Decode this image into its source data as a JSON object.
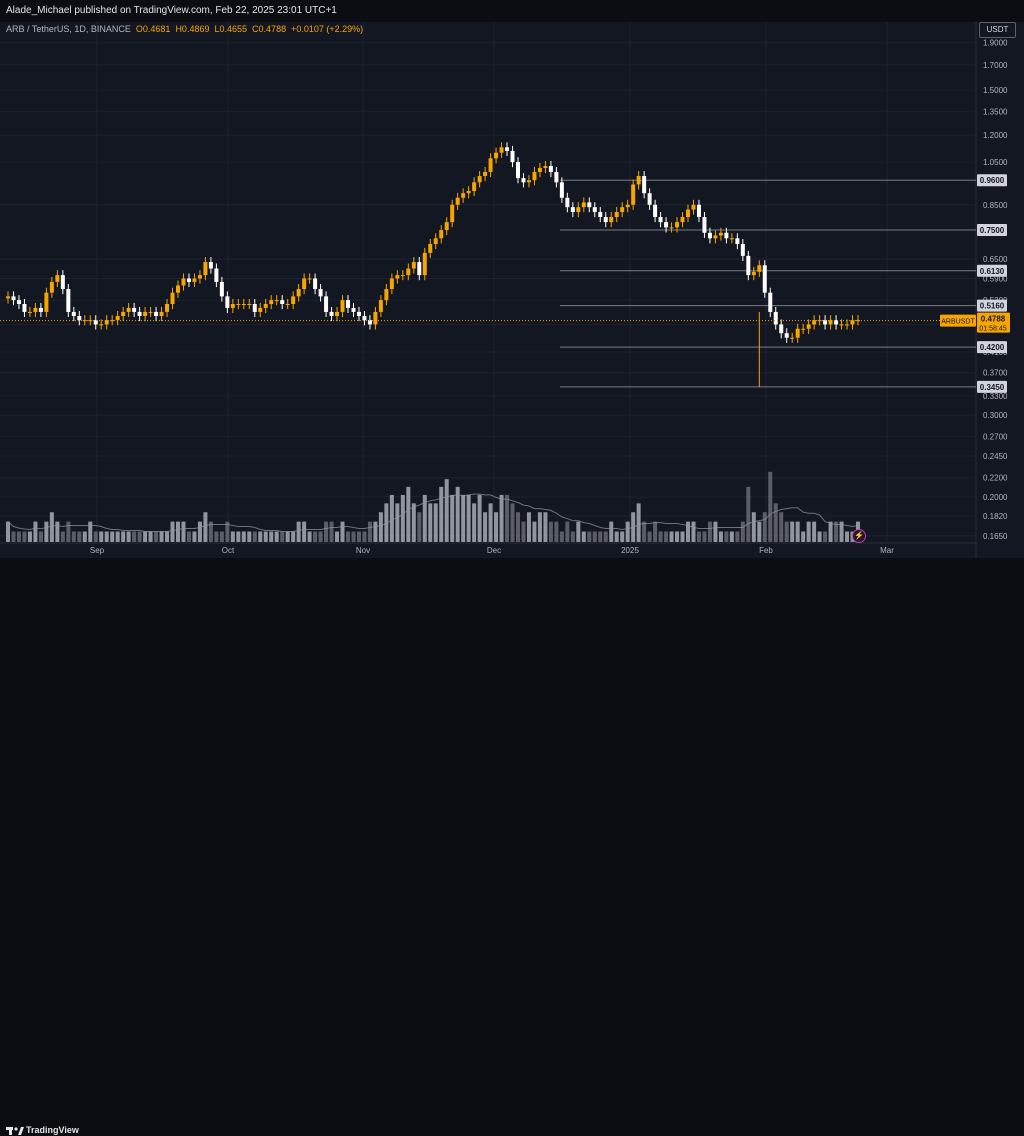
{
  "header": {
    "publisher": "Alade_Michael published on TradingView.com, Feb 22, 2025 23:01 UTC+1"
  },
  "legend": {
    "symbol": "ARB / TetherUS, 1D, BINANCE",
    "open": "O0.4681",
    "high": "H0.4869",
    "low": "L0.4655",
    "close": "C0.4788",
    "change": "+0.0107 (+2.29%)"
  },
  "currency": "USDT",
  "footer": {
    "brand": "TradingView"
  },
  "colors": {
    "up": "#f7a600",
    "down": "#ffffff",
    "background": "#131722",
    "grid": "#1e2230",
    "hline": "#787b86",
    "volume_up": "#b2b5be",
    "volume_down": "#6d6f78",
    "volume_ma": "#9598a1"
  },
  "chart_data": {
    "type": "candlestick",
    "symbol": "ARBUSDT",
    "interval": "1D",
    "y_scale": "log",
    "ylim": [
      0.16,
      2.0
    ],
    "y_ticks": [
      "1.9000",
      "1.7000",
      "1.5000",
      "1.3500",
      "1.2000",
      "1.0500",
      "0.8500",
      "0.6500",
      "0.5900",
      "0.5300",
      "0.4700",
      "0.4100",
      "0.3700",
      "0.3300",
      "0.3000",
      "0.2700",
      "0.2450",
      "0.2200",
      "0.2000",
      "0.1820",
      "0.1650"
    ],
    "x_ticks": [
      "Sep",
      "Oct",
      "Nov",
      "Dec",
      "2025",
      "Feb",
      "Mar"
    ],
    "levels": [
      {
        "value": 0.96,
        "label": "0.9600"
      },
      {
        "value": 0.75,
        "label": "0.7500"
      },
      {
        "value": 0.613,
        "label": "0.6130"
      },
      {
        "value": 0.516,
        "label": "0.5160"
      },
      {
        "value": 0.42,
        "label": "0.4200"
      },
      {
        "value": 0.345,
        "label": "0.3450"
      }
    ],
    "last_price": {
      "symbol": "ARBUSDT",
      "value": "0.4788",
      "countdown": "01:58:45"
    },
    "close_series": [
      0.54,
      0.53,
      0.52,
      0.5,
      0.5,
      0.51,
      0.5,
      0.55,
      0.58,
      0.6,
      0.56,
      0.5,
      0.49,
      0.48,
      0.48,
      0.48,
      0.47,
      0.47,
      0.48,
      0.48,
      0.49,
      0.5,
      0.51,
      0.5,
      0.49,
      0.5,
      0.5,
      0.49,
      0.5,
      0.52,
      0.55,
      0.57,
      0.59,
      0.58,
      0.59,
      0.6,
      0.64,
      0.62,
      0.58,
      0.54,
      0.51,
      0.52,
      0.52,
      0.52,
      0.52,
      0.5,
      0.51,
      0.52,
      0.53,
      0.53,
      0.52,
      0.52,
      0.54,
      0.56,
      0.59,
      0.59,
      0.56,
      0.54,
      0.5,
      0.49,
      0.5,
      0.53,
      0.51,
      0.5,
      0.49,
      0.48,
      0.47,
      0.5,
      0.53,
      0.56,
      0.59,
      0.6,
      0.6,
      0.62,
      0.64,
      0.6,
      0.67,
      0.7,
      0.72,
      0.75,
      0.78,
      0.85,
      0.88,
      0.9,
      0.91,
      0.95,
      0.98,
      1.0,
      1.07,
      1.1,
      1.13,
      1.11,
      1.05,
      0.97,
      0.95,
      0.96,
      1.0,
      1.02,
      1.03,
      1.0,
      0.95,
      0.88,
      0.84,
      0.82,
      0.84,
      0.86,
      0.84,
      0.82,
      0.8,
      0.78,
      0.8,
      0.82,
      0.84,
      0.85,
      0.94,
      0.98,
      0.9,
      0.85,
      0.8,
      0.78,
      0.76,
      0.76,
      0.78,
      0.8,
      0.83,
      0.85,
      0.8,
      0.74,
      0.72,
      0.73,
      0.74,
      0.72,
      0.72,
      0.7,
      0.66,
      0.6,
      0.61,
      0.63,
      0.55,
      0.5,
      0.47,
      0.45,
      0.44,
      0.44,
      0.46,
      0.46,
      0.47,
      0.48,
      0.48,
      0.47,
      0.48,
      0.47,
      0.47,
      0.47,
      0.48,
      0.48
    ],
    "volume_series": [
      0.18,
      0.17,
      0.17,
      0.17,
      0.17,
      0.18,
      0.17,
      0.18,
      0.19,
      0.18,
      0.17,
      0.18,
      0.17,
      0.17,
      0.17,
      0.18,
      0.17,
      0.17,
      0.17,
      0.17,
      0.17,
      0.17,
      0.17,
      0.17,
      0.17,
      0.17,
      0.17,
      0.17,
      0.17,
      0.17,
      0.18,
      0.18,
      0.18,
      0.17,
      0.17,
      0.18,
      0.19,
      0.18,
      0.17,
      0.17,
      0.18,
      0.17,
      0.17,
      0.17,
      0.17,
      0.17,
      0.17,
      0.17,
      0.17,
      0.17,
      0.17,
      0.17,
      0.17,
      0.18,
      0.18,
      0.17,
      0.17,
      0.17,
      0.18,
      0.18,
      0.17,
      0.18,
      0.17,
      0.17,
      0.17,
      0.17,
      0.18,
      0.18,
      0.19,
      0.2,
      0.21,
      0.2,
      0.21,
      0.22,
      0.2,
      0.19,
      0.21,
      0.2,
      0.2,
      0.22,
      0.23,
      0.21,
      0.22,
      0.21,
      0.21,
      0.2,
      0.21,
      0.19,
      0.2,
      0.19,
      0.21,
      0.21,
      0.2,
      0.19,
      0.18,
      0.19,
      0.18,
      0.19,
      0.19,
      0.18,
      0.18,
      0.17,
      0.18,
      0.17,
      0.18,
      0.17,
      0.17,
      0.17,
      0.17,
      0.17,
      0.18,
      0.17,
      0.17,
      0.18,
      0.19,
      0.2,
      0.18,
      0.17,
      0.18,
      0.17,
      0.17,
      0.17,
      0.17,
      0.17,
      0.18,
      0.18,
      0.17,
      0.17,
      0.18,
      0.18,
      0.17,
      0.17,
      0.17,
      0.17,
      0.18,
      0.22,
      0.19,
      0.18,
      0.19,
      0.24,
      0.2,
      0.19,
      0.18,
      0.18,
      0.18,
      0.17,
      0.18,
      0.18,
      0.17,
      0.17,
      0.18,
      0.18,
      0.18,
      0.17,
      0.17,
      0.18
    ]
  }
}
